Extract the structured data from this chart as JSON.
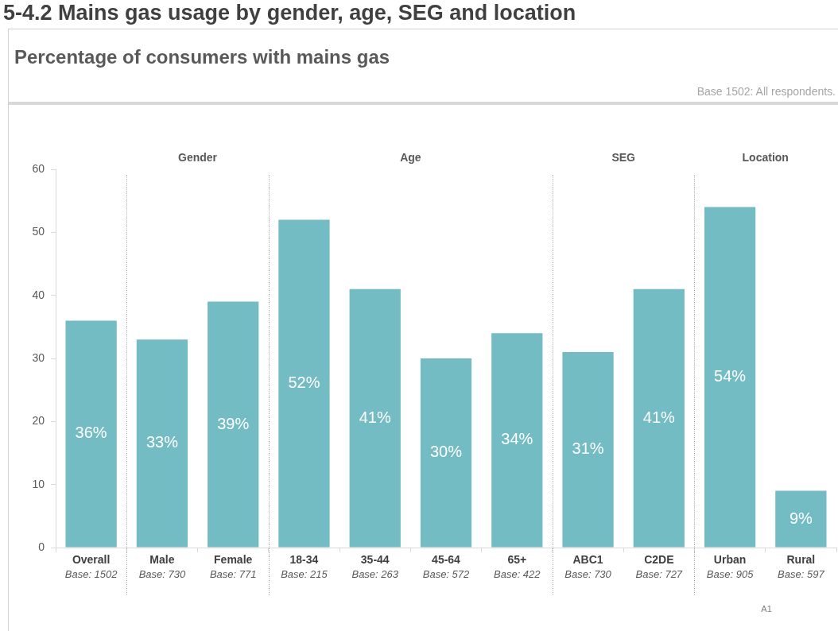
{
  "chart_data": {
    "type": "bar",
    "title": "5-4.2 Mains gas usage by gender, age, SEG and location",
    "subtitle": "Percentage of consumers with mains gas",
    "categories": [
      "Overall\nBase: 1502",
      "Male\nBase: 730",
      "Female\nBase: 771",
      "18-34\nBase: 215",
      "35-44\nBase: 263",
      "45-64\nBase: 572",
      "65+\nBase: 422",
      "ABC1\nBase: 730",
      "C2DE\nBase: 727",
      "Urban\nBase: 905",
      "Rural\nBase: 597"
    ],
    "values": [
      36,
      33,
      39,
      52,
      41,
      30,
      34,
      31,
      41,
      54,
      9
    ],
    "value_labels": [
      "36%",
      "33%",
      "39%",
      "52%",
      "41%",
      "30%",
      "34%",
      "31%",
      "41%",
      "54%",
      "9%"
    ],
    "color": "#74bcc4",
    "ylim": [
      0,
      60
    ],
    "yticks": [
      0,
      10,
      20,
      30,
      40,
      50,
      60
    ],
    "annotations": [
      "Gender",
      "Age",
      "SEG",
      "Location",
      "Base 1502: All respondents.",
      "A1"
    ]
  }
}
